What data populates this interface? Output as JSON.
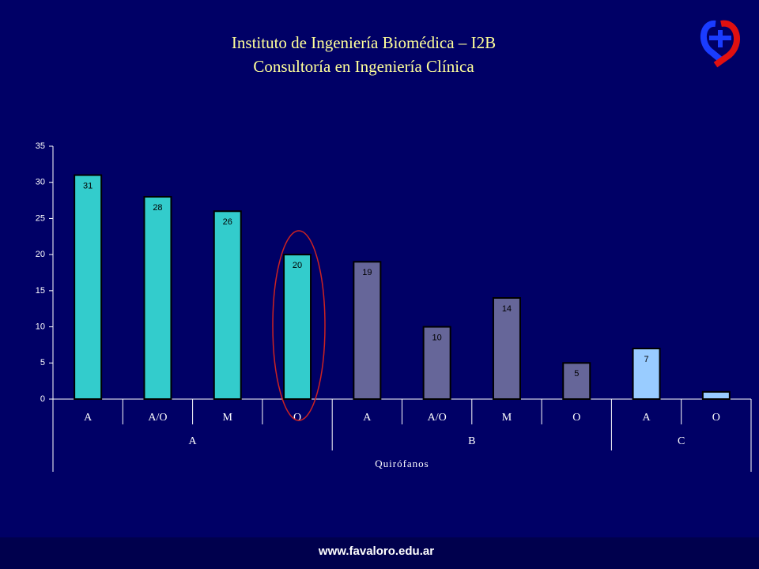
{
  "header": {
    "title_lines": [
      "Instituto de Ingeniería Biomédica – I2B",
      "Consultoría en Ingeniería Clínica"
    ]
  },
  "chart_data": {
    "type": "bar",
    "categories": [
      "A",
      "A/O",
      "M",
      "O",
      "A",
      "A/O",
      "M",
      "O",
      "A",
      "O"
    ],
    "groups": [
      "A",
      "A",
      "A",
      "A",
      "B",
      "B",
      "B",
      "B",
      "C",
      "C"
    ],
    "values": [
      31,
      28,
      26,
      20,
      19,
      10,
      14,
      5,
      7,
      1
    ],
    "value_labels": [
      "31",
      "28",
      "26",
      "20",
      "19",
      "10",
      "14",
      "5",
      "7",
      null
    ],
    "colors": [
      "#33cccc",
      "#33cccc",
      "#33cccc",
      "#33cccc",
      "#666699",
      "#666699",
      "#666699",
      "#666699",
      "#99ccff",
      "#99ccff"
    ],
    "x_label": "Quirófanos",
    "ylim": [
      0,
      35
    ],
    "yticks": [
      0,
      5,
      10,
      15,
      20,
      25,
      30,
      35
    ]
  },
  "footer": {
    "url": "www.favaloro.edu.ar"
  }
}
